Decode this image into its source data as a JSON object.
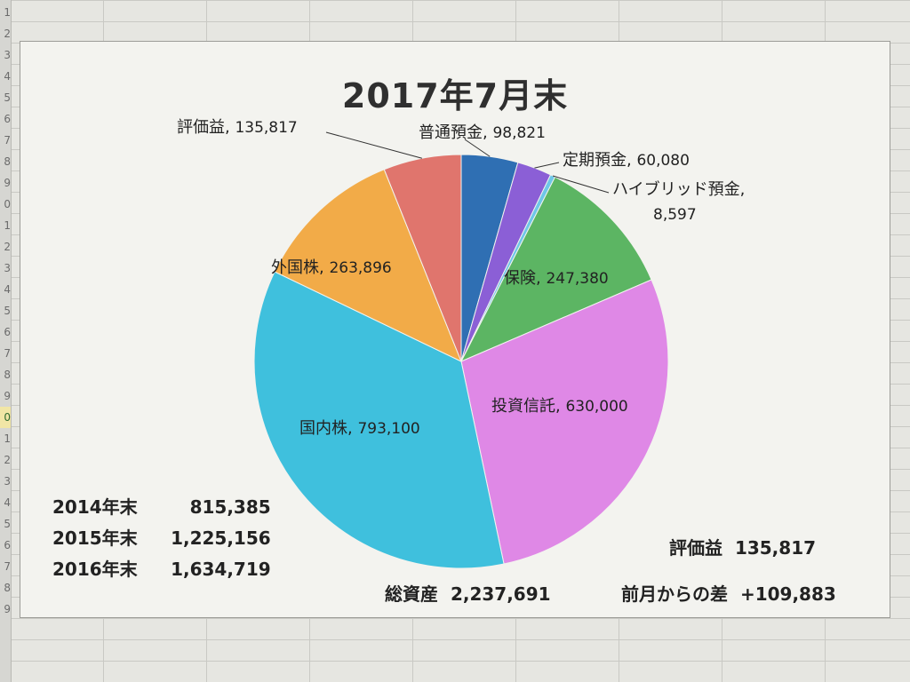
{
  "chart_data": {
    "type": "pie",
    "title": "2017年7月末",
    "slices": [
      {
        "label": "普通預金",
        "value": 98821,
        "value_text": "98,821",
        "color": "#2f6fb3"
      },
      {
        "label": "定期預金",
        "value": 60080,
        "value_text": "60,080",
        "color": "#8b5fd6"
      },
      {
        "label": "ハイブリッド預金",
        "value": 8597,
        "value_text": "8,597",
        "color": "#6ec7e8"
      },
      {
        "label": "保険",
        "value": 247380,
        "value_text": "247,380",
        "color": "#5cb563"
      },
      {
        "label": "投資信託",
        "value": 630000,
        "value_text": "630,000",
        "color": "#df88e6"
      },
      {
        "label": "国内株",
        "value": 793100,
        "value_text": "793,100",
        "color": "#3fc0dd"
      },
      {
        "label": "外国株",
        "value": 263896,
        "value_text": "263,896",
        "color": "#f2ab48"
      },
      {
        "label": "評価益",
        "value": 135817,
        "value_text": "135,817",
        "color": "#e0756d"
      }
    ]
  },
  "history": [
    {
      "label": "2014年末",
      "value": "815,385"
    },
    {
      "label": "2015年末",
      "value": "1,225,156"
    },
    {
      "label": "2016年末",
      "value": "1,634,719"
    }
  ],
  "summary": {
    "total_label": "総資産",
    "total_value": "2,237,691",
    "gain_label": "評価益",
    "gain_value": "135,817",
    "diff_label": "前月からの差",
    "diff_value": "+109,883"
  },
  "row_numbers": [
    "1",
    "2",
    "3",
    "4",
    "5",
    "6",
    "7",
    "8",
    "9",
    "0",
    "1",
    "2",
    "3",
    "4",
    "5",
    "6",
    "7",
    "8",
    "9",
    "0",
    "1",
    "2",
    "3",
    "4",
    "5",
    "6",
    "7",
    "8",
    "9"
  ]
}
